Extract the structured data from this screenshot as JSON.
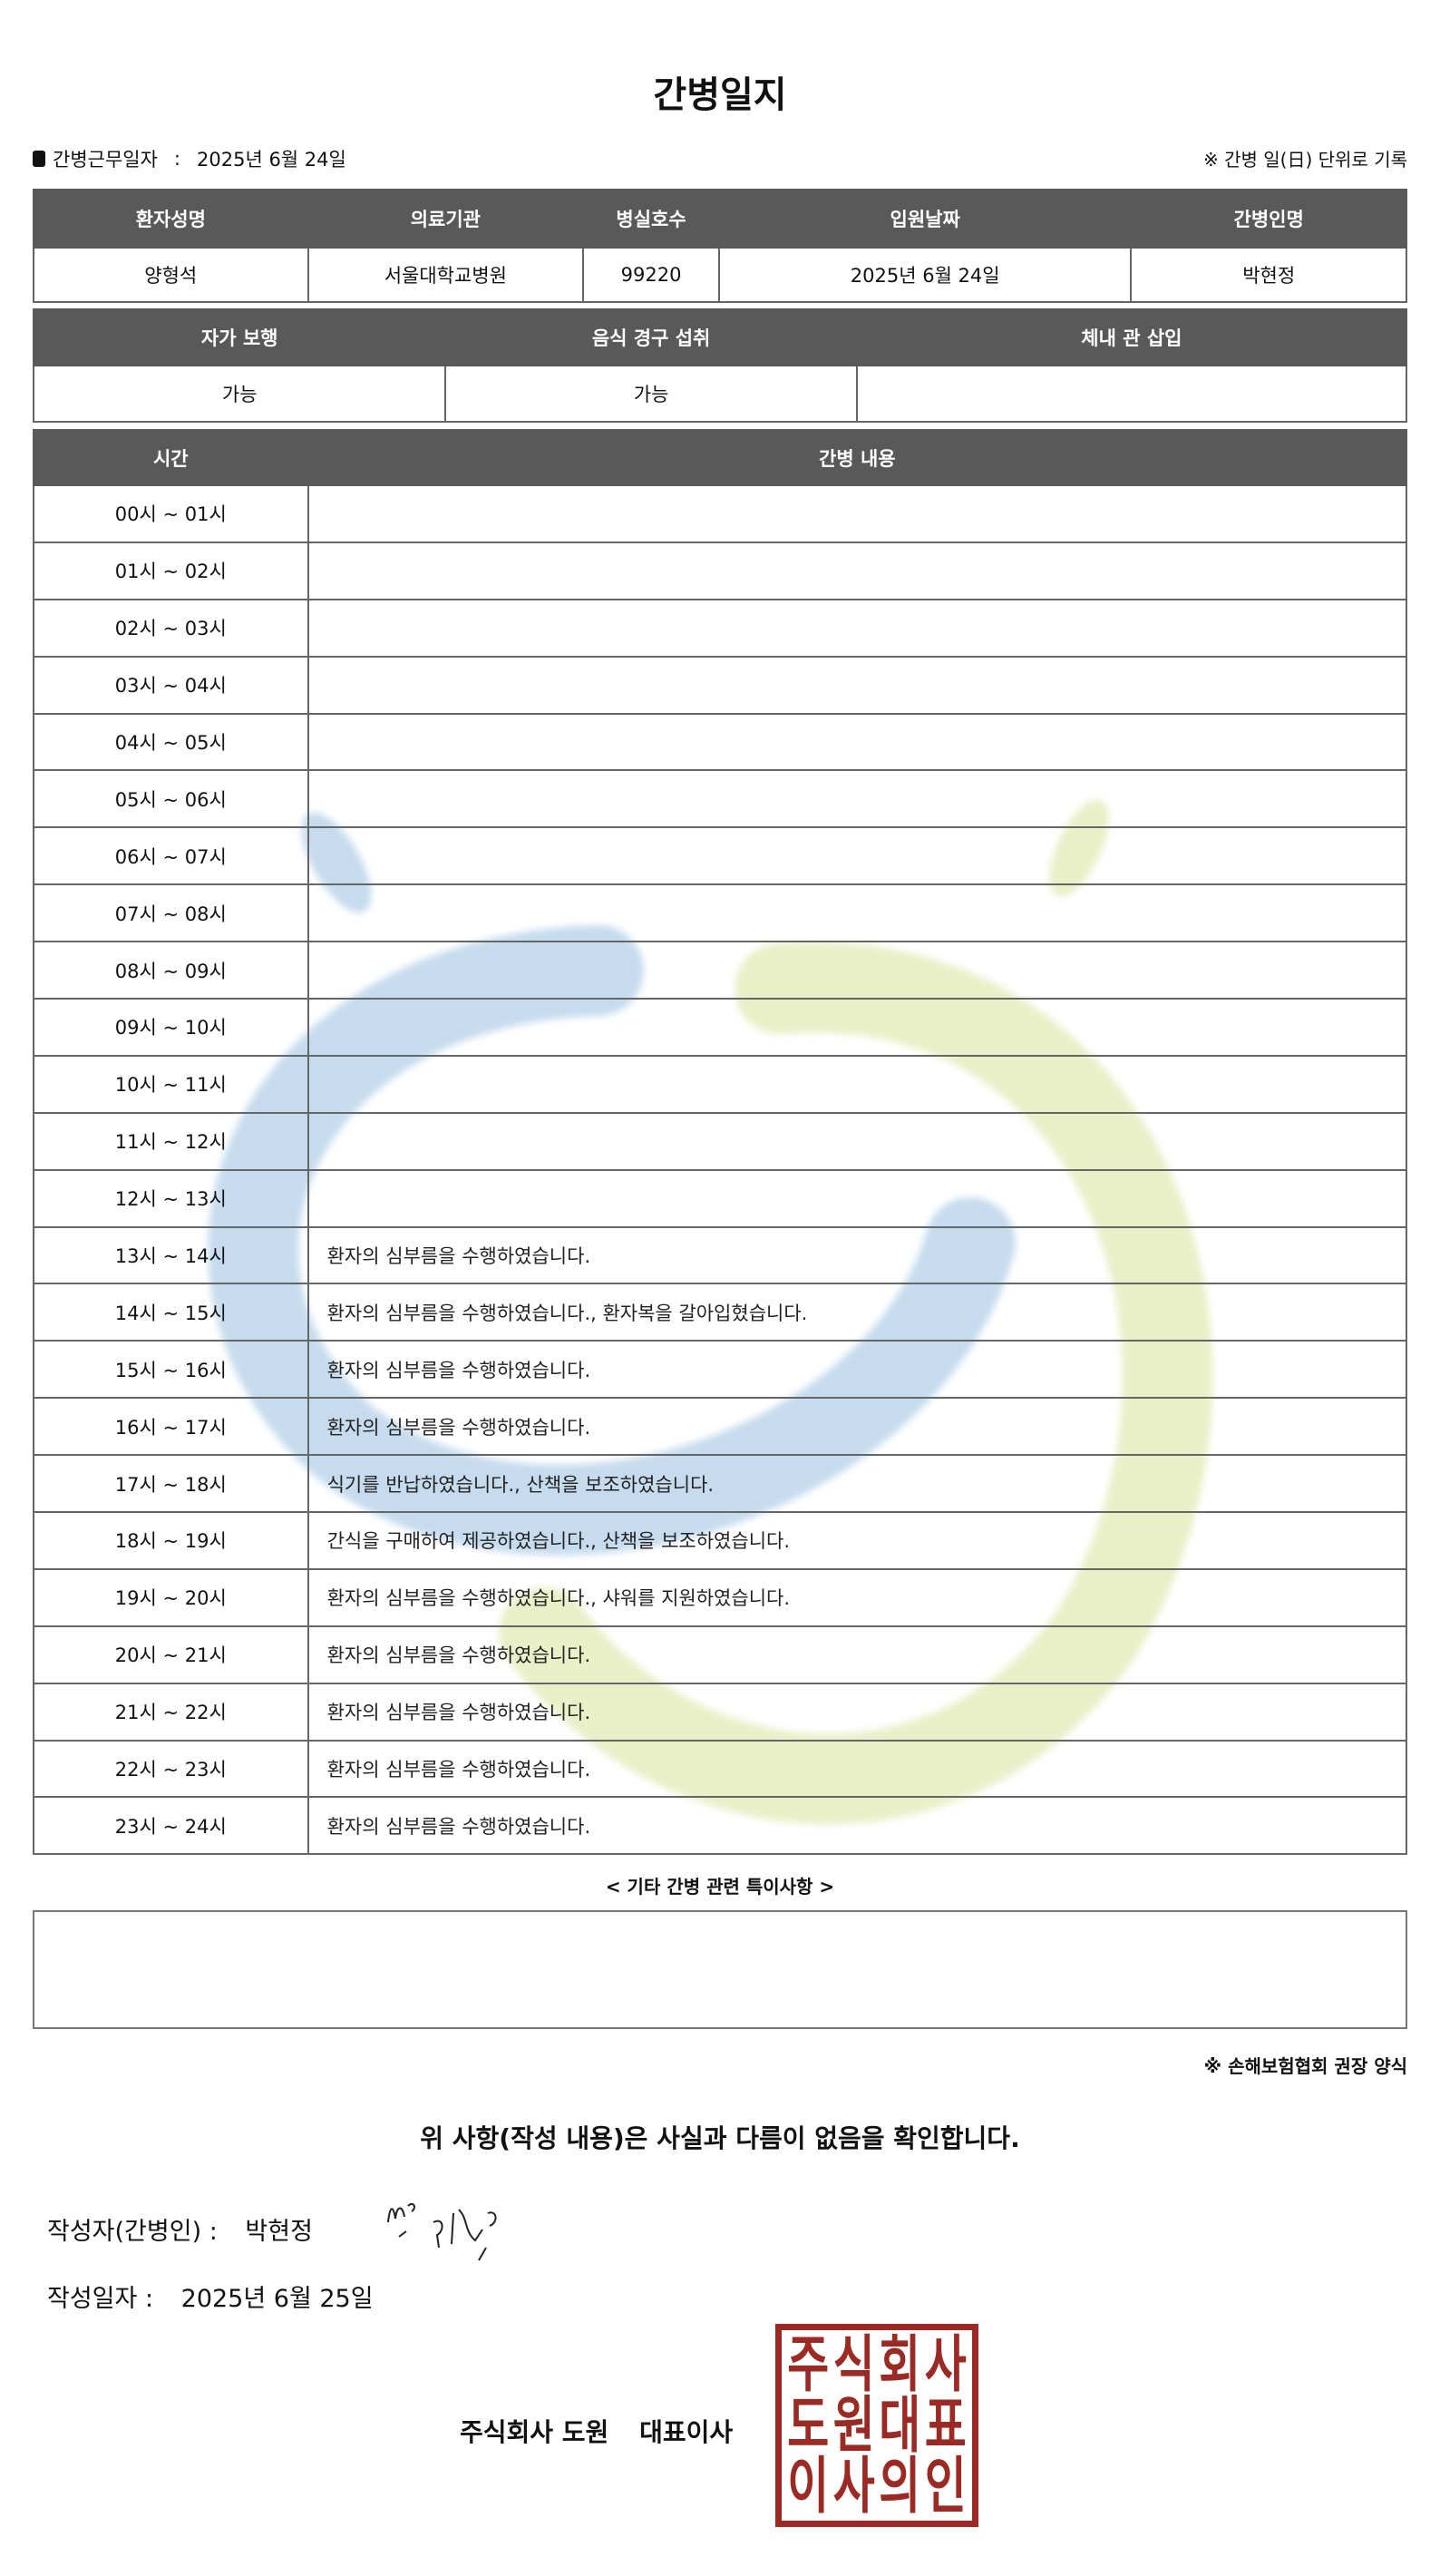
{
  "title": "간병일지",
  "work_date": {
    "label": "간병근무일자",
    "separator": ":",
    "value": "2025년 6월 24일"
  },
  "note_top": "※ 간병 일(日) 단위로 기록",
  "patient_table": {
    "headers": [
      "환자성명",
      "의료기관",
      "병실호수",
      "입원날짜",
      "간병인명"
    ],
    "values": [
      "양형석",
      "서울대학교병원",
      "99220",
      "2025년 6월 24일",
      "박현정"
    ]
  },
  "status_table": {
    "headers": [
      "자가 보행",
      "음식 경구 섭취",
      "체내 관 삽입"
    ],
    "values": [
      "가능",
      "가능",
      ""
    ]
  },
  "log_table": {
    "headers": [
      "시간",
      "간병 내용"
    ],
    "rows": [
      {
        "time": "00시 ~ 01시",
        "content": ""
      },
      {
        "time": "01시 ~ 02시",
        "content": ""
      },
      {
        "time": "02시 ~ 03시",
        "content": ""
      },
      {
        "time": "03시 ~ 04시",
        "content": ""
      },
      {
        "time": "04시 ~ 05시",
        "content": ""
      },
      {
        "time": "05시 ~ 06시",
        "content": ""
      },
      {
        "time": "06시 ~ 07시",
        "content": ""
      },
      {
        "time": "07시 ~ 08시",
        "content": ""
      },
      {
        "time": "08시 ~ 09시",
        "content": ""
      },
      {
        "time": "09시 ~ 10시",
        "content": ""
      },
      {
        "time": "10시 ~ 11시",
        "content": ""
      },
      {
        "time": "11시 ~ 12시",
        "content": ""
      },
      {
        "time": "12시 ~ 13시",
        "content": ""
      },
      {
        "time": "13시 ~ 14시",
        "content": "환자의 심부름을 수행하였습니다."
      },
      {
        "time": "14시 ~ 15시",
        "content": "환자의 심부름을 수행하였습니다., 환자복을 갈아입혔습니다."
      },
      {
        "time": "15시 ~ 16시",
        "content": "환자의 심부름을 수행하였습니다."
      },
      {
        "time": "16시 ~ 17시",
        "content": "환자의 심부름을 수행하였습니다."
      },
      {
        "time": "17시 ~ 18시",
        "content": "식기를 반납하였습니다., 산책을 보조하였습니다."
      },
      {
        "time": "18시 ~ 19시",
        "content": "간식을 구매하여 제공하였습니다., 산책을 보조하였습니다."
      },
      {
        "time": "19시 ~ 20시",
        "content": "환자의 심부름을 수행하였습니다., 샤워를 지원하였습니다."
      },
      {
        "time": "20시 ~ 21시",
        "content": "환자의 심부름을 수행하였습니다."
      },
      {
        "time": "21시 ~ 22시",
        "content": "환자의 심부름을 수행하였습니다."
      },
      {
        "time": "22시 ~ 23시",
        "content": "환자의 심부름을 수행하였습니다."
      },
      {
        "time": "23시 ~ 24시",
        "content": "환자의 심부름을 수행하였습니다."
      }
    ]
  },
  "special_notes": {
    "label": "< 기타 간병 관련 특이사항 >",
    "value": ""
  },
  "recommend_note": "※ 손해보험협회 권장 양식",
  "confirm_text": "위 사항(작성 내용)은 사실과 다름이 없음을 확인합니다.",
  "writer": {
    "label": "작성자(간병인) :",
    "name": "박현정"
  },
  "written_date": {
    "label": "작성일자 :",
    "value": "2025년 6월 25일"
  },
  "company": {
    "name": "주식회사 도원",
    "role": "대표이사"
  },
  "seal_text": [
    "주",
    "식",
    "회",
    "사",
    "도",
    "원",
    "대",
    "표",
    "이",
    "사",
    "의",
    "인"
  ],
  "colors": {
    "header_bg": "#595959",
    "seal": "#9b2a25",
    "watermark_blue": "#c6dcee",
    "watermark_green": "#e9f0c8"
  }
}
